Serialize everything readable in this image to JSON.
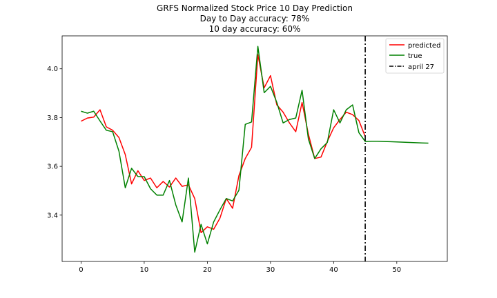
{
  "chart_data": {
    "type": "line",
    "title_lines": [
      "GRFS Normalized Stock Price 10 Day Prediction",
      "Day to Day accuracy: 78%",
      "10 day accuracy: 60%"
    ],
    "xlabel": "",
    "ylabel": "",
    "xlim": [
      -3,
      58
    ],
    "ylim": [
      3.21,
      4.135
    ],
    "x_ticks": [
      0,
      10,
      20,
      30,
      40,
      50
    ],
    "y_ticks": [
      3.4,
      3.6,
      3.8,
      4.0
    ],
    "x_tick_labels": [
      "0",
      "10",
      "20",
      "30",
      "40",
      "50"
    ],
    "y_tick_labels": [
      "3.4",
      "3.6",
      "3.8",
      "4.0"
    ],
    "grid": false,
    "legend_position": "top-right",
    "series": [
      {
        "name": "predicted",
        "color": "#ff0000",
        "x": [
          0,
          1,
          2,
          3,
          4,
          5,
          6,
          7,
          8,
          9,
          10,
          11,
          12,
          13,
          14,
          15,
          16,
          17,
          18,
          19,
          20,
          21,
          22,
          23,
          24,
          25,
          26,
          27,
          28,
          29,
          30,
          31,
          32,
          33,
          34,
          35,
          36,
          37,
          38,
          39,
          40,
          41,
          42,
          43,
          44,
          45
        ],
        "y": [
          3.785,
          3.798,
          3.802,
          3.832,
          3.762,
          3.748,
          3.718,
          3.648,
          3.528,
          3.582,
          3.542,
          3.552,
          3.512,
          3.538,
          3.515,
          3.552,
          3.518,
          3.524,
          3.468,
          3.328,
          3.352,
          3.342,
          3.388,
          3.468,
          3.428,
          3.562,
          3.632,
          3.678,
          4.058,
          3.922,
          3.972,
          3.852,
          3.822,
          3.778,
          3.742,
          3.862,
          3.732,
          3.632,
          3.638,
          3.702,
          3.758,
          3.792,
          3.822,
          3.812,
          3.788,
          3.722
        ]
      },
      {
        "name": "true",
        "color": "#008000",
        "x": [
          0,
          1,
          2,
          3,
          4,
          5,
          6,
          7,
          8,
          9,
          10,
          11,
          12,
          13,
          14,
          15,
          16,
          17,
          18,
          19,
          20,
          21,
          22,
          23,
          24,
          25,
          26,
          27,
          28,
          29,
          30,
          31,
          32,
          33,
          34,
          35,
          36,
          37,
          38,
          39,
          40,
          41,
          42,
          43,
          44,
          45,
          46,
          47,
          48,
          49,
          50,
          51,
          52,
          53,
          54,
          55
        ],
        "y": [
          3.826,
          3.818,
          3.826,
          3.786,
          3.748,
          3.742,
          3.662,
          3.512,
          3.592,
          3.558,
          3.558,
          3.508,
          3.482,
          3.482,
          3.542,
          3.442,
          3.372,
          3.552,
          3.248,
          3.362,
          3.282,
          3.372,
          3.422,
          3.468,
          3.458,
          3.502,
          3.772,
          3.782,
          4.092,
          3.902,
          3.928,
          3.862,
          3.778,
          3.792,
          3.798,
          3.912,
          3.712,
          3.632,
          3.672,
          3.698,
          3.832,
          3.778,
          3.832,
          3.852,
          3.738,
          3.702,
          3.703,
          3.703,
          3.702,
          3.701,
          3.7,
          3.699,
          3.698,
          3.697,
          3.696,
          3.695
        ]
      }
    ],
    "vline": {
      "name": "april 27",
      "x": 45,
      "color": "#000000",
      "style": "dashdot"
    }
  }
}
